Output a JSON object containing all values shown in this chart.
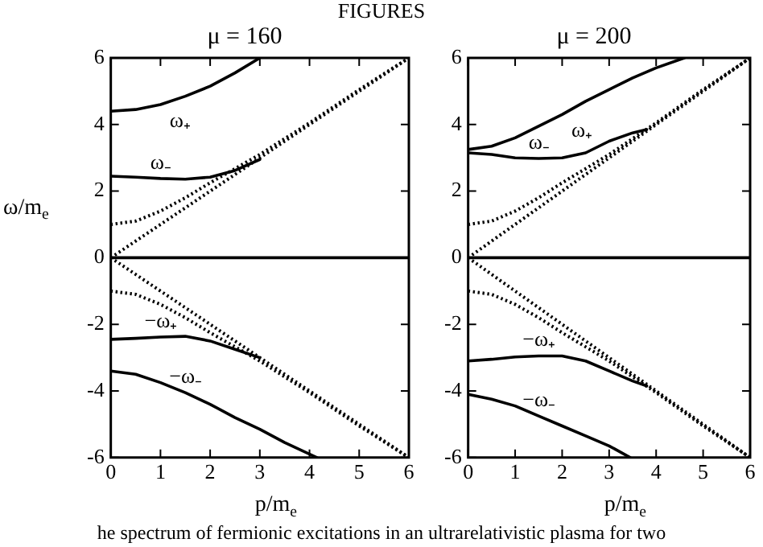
{
  "chart_data": [
    {
      "type": "line",
      "title": "μ = 160",
      "xlabel": "p/m$_{e}$",
      "ylabel": "ω/m$_{e}$",
      "xlim": [
        0,
        6
      ],
      "xticks": [
        0,
        1,
        2,
        3,
        4,
        5,
        6
      ],
      "ylim": [
        -6,
        6
      ],
      "yticks": [
        -6,
        -4,
        -2,
        0,
        2,
        4,
        6
      ],
      "grid": false,
      "legend": false,
      "marker": "none",
      "annotations": [
        "FIGURES",
        "he spectrum of fermionic excitations in an ultrarelativistic plasma for two"
      ],
      "ref_lines": [
        {
          "axis": "y",
          "value": 0,
          "color": "#000000"
        }
      ],
      "series": [
        {
          "name": "ω₊",
          "color": "#000000",
          "line_style": "solid",
          "x": [
            0,
            0.5,
            1,
            1.5,
            2,
            2.5,
            3
          ],
          "values": [
            4.4,
            4.45,
            4.6,
            4.85,
            5.15,
            5.55,
            6.0
          ]
        },
        {
          "name": "ω₋",
          "color": "#000000",
          "line_style": "solid",
          "x": [
            0,
            0.5,
            1,
            1.5,
            2,
            2.5,
            3
          ],
          "values": [
            2.45,
            2.42,
            2.38,
            2.36,
            2.42,
            2.62,
            2.95
          ]
        },
        {
          "name": "−ω₊",
          "color": "#000000",
          "line_style": "solid",
          "x": [
            0,
            0.5,
            1,
            1.5,
            2,
            2.5,
            3
          ],
          "values": [
            -2.45,
            -2.42,
            -2.38,
            -2.36,
            -2.5,
            -2.75,
            -3.0
          ]
        },
        {
          "name": "−ω₋",
          "color": "#000000",
          "line_style": "solid",
          "x": [
            0,
            0.5,
            1,
            1.5,
            2,
            2.5,
            3,
            3.5,
            4.15
          ],
          "values": [
            -3.4,
            -3.5,
            -3.75,
            -4.05,
            -4.4,
            -4.8,
            -5.15,
            -5.55,
            -6.0
          ]
        },
        {
          "color": "#000000",
          "line_style": "dotted",
          "x": [
            0,
            6
          ],
          "values": [
            0,
            6
          ]
        },
        {
          "color": "#000000",
          "line_style": "dotted",
          "x": [
            0,
            0.5,
            1,
            1.5,
            2,
            3,
            4,
            5,
            6
          ],
          "values": [
            1,
            1.1,
            1.4,
            1.8,
            2.25,
            3.1,
            4.05,
            5.05,
            6.0
          ]
        },
        {
          "color": "#000000",
          "line_style": "dotted",
          "x": [
            0,
            6
          ],
          "values": [
            0,
            -6
          ]
        },
        {
          "color": "#000000",
          "line_style": "dotted",
          "x": [
            0,
            0.5,
            1,
            1.5,
            2,
            3,
            4,
            5,
            6
          ],
          "values": [
            -1,
            -1.1,
            -1.4,
            -1.8,
            -2.25,
            -3.1,
            -4.05,
            -5.05,
            -6.0
          ]
        }
      ]
    },
    {
      "type": "line",
      "title": "μ = 200",
      "xlabel": "p/m$_{e}$",
      "xlim": [
        0,
        6
      ],
      "xticks": [
        0,
        1,
        2,
        3,
        4,
        5,
        6
      ],
      "ylim": [
        -6,
        6
      ],
      "yticks": [
        -6,
        -4,
        -2,
        0,
        2,
        4,
        6
      ],
      "grid": false,
      "legend": false,
      "marker": "none",
      "ref_lines": [
        {
          "axis": "y",
          "value": 0,
          "color": "#000000"
        }
      ],
      "series": [
        {
          "name": "ω₊",
          "color": "#000000",
          "line_style": "solid",
          "x": [
            0,
            0.5,
            1,
            1.5,
            2,
            2.5,
            3,
            3.5,
            4,
            4.6
          ],
          "values": [
            3.25,
            3.35,
            3.6,
            3.95,
            4.3,
            4.7,
            5.05,
            5.4,
            5.7,
            6.0
          ]
        },
        {
          "name": "ω₋",
          "color": "#000000",
          "line_style": "solid",
          "x": [
            0,
            0.5,
            1,
            1.5,
            2,
            2.5,
            3,
            3.5,
            3.8
          ],
          "values": [
            3.15,
            3.1,
            3.0,
            2.98,
            3.0,
            3.15,
            3.5,
            3.75,
            3.85
          ]
        },
        {
          "name": "−ω₊",
          "color": "#000000",
          "line_style": "solid",
          "x": [
            0,
            0.5,
            1,
            1.5,
            2,
            2.5,
            3,
            3.5,
            3.8
          ],
          "values": [
            -3.1,
            -3.05,
            -2.98,
            -2.95,
            -2.95,
            -3.1,
            -3.4,
            -3.7,
            -3.85
          ]
        },
        {
          "name": "−ω₋",
          "color": "#000000",
          "line_style": "solid",
          "x": [
            0,
            0.5,
            1,
            1.5,
            2,
            2.5,
            3,
            3.45
          ],
          "values": [
            -4.1,
            -4.25,
            -4.45,
            -4.75,
            -5.05,
            -5.35,
            -5.65,
            -6.0
          ]
        },
        {
          "color": "#000000",
          "line_style": "dotted",
          "x": [
            0,
            6
          ],
          "values": [
            0,
            6
          ]
        },
        {
          "color": "#000000",
          "line_style": "dotted",
          "x": [
            0,
            0.5,
            1,
            1.5,
            2,
            3,
            4,
            5,
            6
          ],
          "values": [
            1,
            1.1,
            1.4,
            1.8,
            2.25,
            3.1,
            4.05,
            5.05,
            6.0
          ]
        },
        {
          "color": "#000000",
          "line_style": "dotted",
          "x": [
            0,
            6
          ],
          "values": [
            0,
            -6
          ]
        },
        {
          "color": "#000000",
          "line_style": "dotted",
          "x": [
            0,
            0.5,
            1,
            1.5,
            2,
            3,
            4,
            5,
            6
          ],
          "values": [
            -1,
            -1.1,
            -1.4,
            -1.8,
            -2.25,
            -3.1,
            -4.05,
            -5.05,
            -6.0
          ]
        }
      ]
    }
  ]
}
